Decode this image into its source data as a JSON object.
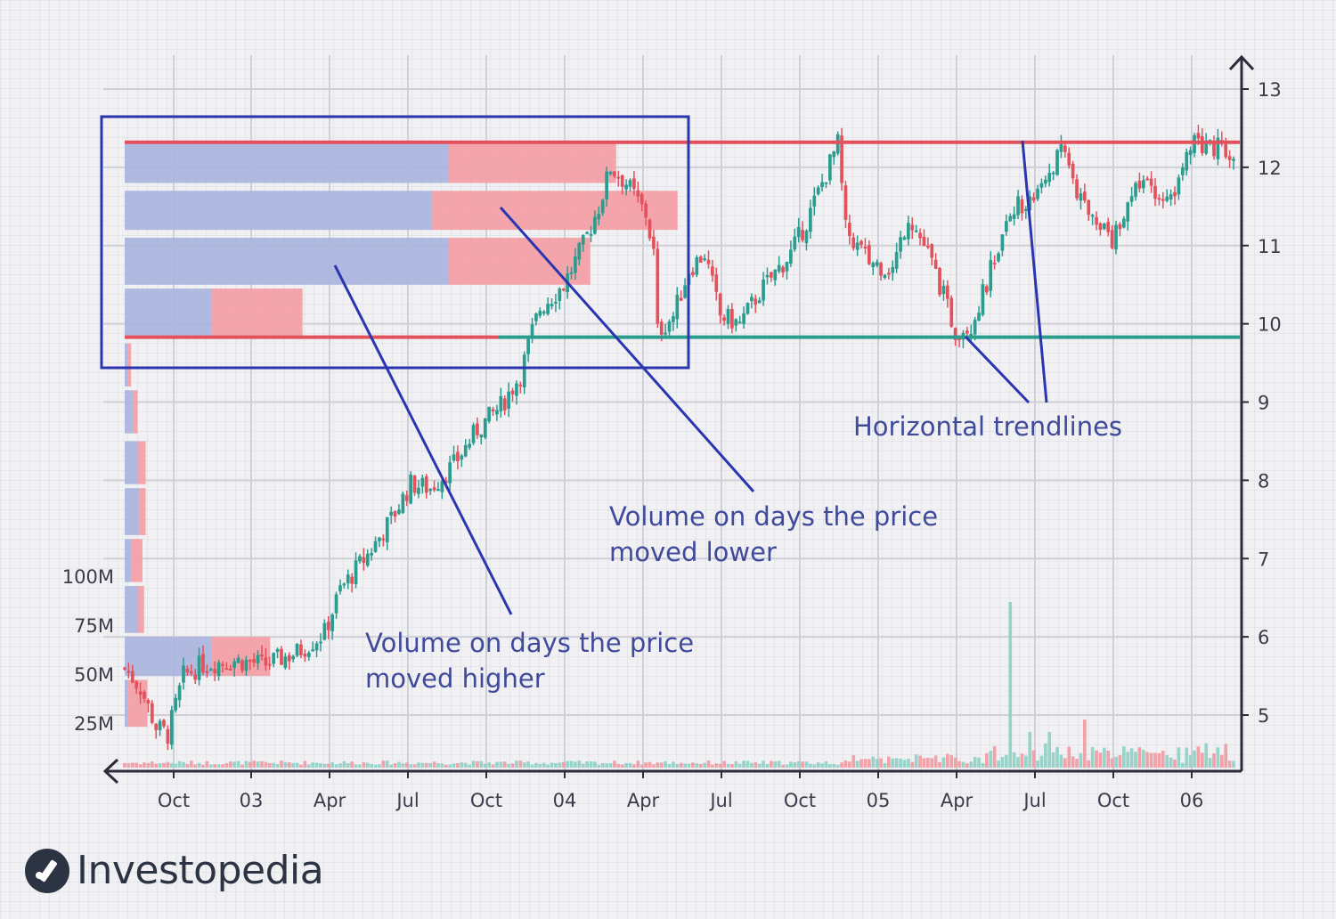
{
  "chart_data": {
    "type": "candlestick",
    "x_ticks": [
      "Oct",
      "03",
      "Apr",
      "Jul",
      "Oct",
      "04",
      "Apr",
      "Jul",
      "Oct",
      "05",
      "Apr",
      "Jul",
      "Oct",
      "06"
    ],
    "y_ticks": [
      5,
      6,
      7,
      8,
      9,
      10,
      11,
      12,
      13
    ],
    "ylim": [
      4.4,
      13.3
    ],
    "volume_ticks": [
      "25M",
      "50M",
      "75M",
      "100M"
    ],
    "grid": true,
    "price_path": [
      [
        0,
        5.6
      ],
      [
        4,
        5.35
      ],
      [
        8,
        4.85
      ],
      [
        11,
        4.75
      ],
      [
        15,
        5.5
      ],
      [
        20,
        5.65
      ],
      [
        28,
        5.7
      ],
      [
        36,
        5.65
      ],
      [
        44,
        5.8
      ],
      [
        51,
        6.05
      ],
      [
        55,
        6.6
      ],
      [
        62,
        7.05
      ],
      [
        68,
        7.5
      ],
      [
        73,
        7.95
      ],
      [
        78,
        7.9
      ],
      [
        84,
        8.2
      ],
      [
        90,
        8.65
      ],
      [
        96,
        8.95
      ],
      [
        101,
        9.35
      ],
      [
        104,
        9.9
      ],
      [
        106,
        10.2
      ],
      [
        112,
        10.5
      ],
      [
        117,
        11.0
      ],
      [
        121,
        11.5
      ],
      [
        124,
        12.0
      ],
      [
        128,
        11.8
      ],
      [
        133,
        11.4
      ],
      [
        135,
        10.9
      ],
      [
        136,
        9.9
      ],
      [
        140,
        10.1
      ],
      [
        144,
        10.7
      ],
      [
        148,
        10.9
      ],
      [
        152,
        10.1
      ],
      [
        157,
        10.0
      ],
      [
        162,
        10.4
      ],
      [
        170,
        10.9
      ],
      [
        174,
        11.3
      ],
      [
        180,
        12.05
      ],
      [
        182,
        12.3
      ],
      [
        184,
        11.2
      ],
      [
        190,
        10.8
      ],
      [
        196,
        10.7
      ],
      [
        200,
        11.4
      ],
      [
        205,
        10.9
      ],
      [
        208,
        10.5
      ],
      [
        212,
        9.9
      ],
      [
        216,
        10.0
      ],
      [
        220,
        10.5
      ],
      [
        225,
        11.4
      ],
      [
        228,
        11.5
      ],
      [
        234,
        11.8
      ],
      [
        240,
        12.3
      ],
      [
        243,
        11.6
      ],
      [
        248,
        11.4
      ],
      [
        252,
        11.1
      ],
      [
        256,
        11.6
      ],
      [
        262,
        11.8
      ],
      [
        266,
        11.5
      ],
      [
        270,
        12.0
      ],
      [
        273,
        12.3
      ],
      [
        280,
        12.25
      ],
      [
        283,
        12.05
      ]
    ],
    "horizontal_trendlines": [
      {
        "y": 12.32,
        "color": "#e3525c"
      },
      {
        "y": 9.83,
        "color": "#e3525c"
      },
      {
        "y": 9.83,
        "color": "#2a9d8f"
      }
    ],
    "volume_by_price": [
      {
        "y_low": 11.8,
        "y_high": 12.3,
        "up": 100,
        "down": 52
      },
      {
        "y_low": 11.2,
        "y_high": 11.7,
        "up": 95,
        "down": 76
      },
      {
        "y_low": 10.5,
        "y_high": 11.1,
        "up": 100,
        "down": 44
      },
      {
        "y_low": 9.85,
        "y_high": 10.45,
        "up": 27,
        "down": 28
      },
      {
        "y_low": 9.2,
        "y_high": 9.75,
        "up": 1,
        "down": 1
      },
      {
        "y_low": 8.6,
        "y_high": 9.15,
        "up": 2.5,
        "down": 1.5
      },
      {
        "y_low": 7.95,
        "y_high": 8.5,
        "up": 4,
        "down": 2.5
      },
      {
        "y_low": 7.3,
        "y_high": 7.9,
        "up": 4.5,
        "down": 2
      },
      {
        "y_low": 6.7,
        "y_high": 7.25,
        "up": 2,
        "down": 3.5
      },
      {
        "y_low": 6.05,
        "y_high": 6.65,
        "up": 4,
        "down": 2
      },
      {
        "y_low": 5.5,
        "y_high": 6.0,
        "up": 27,
        "down": 18
      },
      {
        "y_low": 4.85,
        "y_high": 5.45,
        "up": 1,
        "down": 6
      }
    ],
    "annotations": {
      "higher_line1": "Volume on days the price",
      "higher_line2": "moved higher",
      "lower_line1": "Volume on days the price",
      "lower_line2": "moved lower",
      "trend": "Horizontal trendlines"
    },
    "colors": {
      "up": "#2a9d8f",
      "down": "#e3525c",
      "up_volume": "#a9b3dd",
      "down_volume": "#f2a0a6",
      "annotation": "#3f4a9a",
      "highlight_box": "#2c35b0"
    }
  },
  "brand": {
    "name": "Investopedia"
  }
}
